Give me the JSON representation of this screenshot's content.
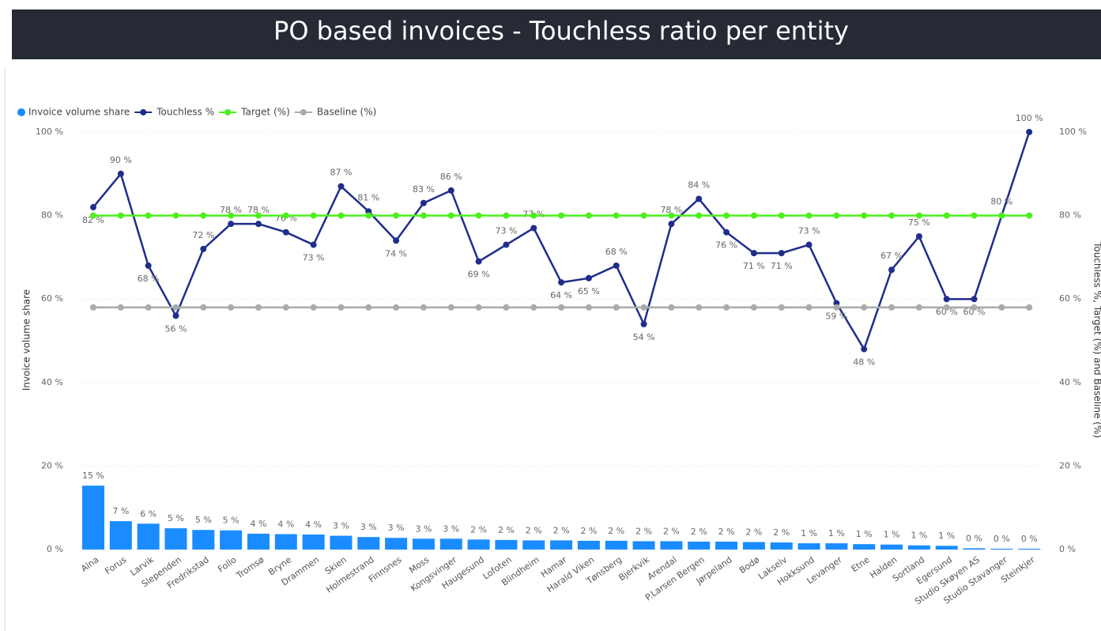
{
  "chart_data": {
    "type": "combo",
    "title": "PO based invoices - Touchless ratio per entity",
    "categories": [
      "Alna",
      "Forus",
      "Larvik",
      "Slependen",
      "Fredrikstad",
      "Follo",
      "Tromsø",
      "Bryne",
      "Drammen",
      "Skien",
      "Holmestrand",
      "Finnsnes",
      "Moss",
      "Kongsvinger",
      "Haugesund",
      "Lofoten",
      "Blindheim",
      "Hamar",
      "Harald Viken",
      "Tønsberg",
      "Bjerkvik",
      "Arendal",
      "P.Larsen Bergen",
      "Jørpeland",
      "Bodø",
      "Lakselv",
      "Hokksund",
      "Levanger",
      "Etne",
      "Halden",
      "Sortland",
      "Egersund",
      "Studio Skøyen AS",
      "Studio Stavanger",
      "Steinkjer"
    ],
    "series": [
      {
        "name": "Invoice volume share",
        "type": "bar",
        "color": "#1a8cff",
        "axis": "y",
        "values": [
          15.3,
          6.8,
          6.2,
          5.1,
          4.7,
          4.6,
          3.8,
          3.7,
          3.6,
          3.3,
          3.0,
          2.8,
          2.6,
          2.6,
          2.4,
          2.3,
          2.2,
          2.2,
          2.1,
          2.1,
          2.0,
          2.0,
          1.9,
          1.9,
          1.8,
          1.7,
          1.5,
          1.5,
          1.3,
          1.2,
          1.0,
          0.9,
          0.3,
          0.2,
          0.2
        ],
        "value_labels": [
          "15 %",
          "7 %",
          "6 %",
          "5 %",
          "5 %",
          "5 %",
          "4 %",
          "4 %",
          "4 %",
          "3 %",
          "3 %",
          "3 %",
          "3 %",
          "3 %",
          "2 %",
          "2 %",
          "2 %",
          "2 %",
          "2 %",
          "2 %",
          "2 %",
          "2 %",
          "2 %",
          "2 %",
          "2 %",
          "2 %",
          "1 %",
          "1 %",
          "1 %",
          "1 %",
          "1 %",
          "1 %",
          "0 %",
          "0 %",
          "0 %"
        ]
      },
      {
        "name": "Touchless %",
        "type": "line",
        "color": "#1f2d8c",
        "axis": "y2",
        "values": [
          82,
          90,
          68,
          56,
          72,
          78,
          78,
          76,
          73,
          87,
          81,
          74,
          83,
          86,
          69,
          73,
          77,
          64,
          65,
          68,
          54,
          78,
          84,
          76,
          71,
          71,
          73,
          59,
          48,
          67,
          75,
          60,
          60,
          80,
          100
        ],
        "value_labels": [
          "82 %",
          "90 %",
          "68 %",
          "56 %",
          "72 %",
          "78 %",
          "78 %",
          "76 %",
          "73 %",
          "87 %",
          "81 %",
          "74 %",
          "83 %",
          "86 %",
          "69 %",
          "73 %",
          "77 %",
          "64 %",
          "65 %",
          "68 %",
          "54 %",
          "78 %",
          "84 %",
          "76 %",
          "71 %",
          "71 %",
          "73 %",
          "59 %",
          "48 %",
          "67 %",
          "75 %",
          "60 %",
          "60 %",
          "80 %",
          "100 %"
        ]
      },
      {
        "name": "Target (%)",
        "type": "line",
        "color": "#4cef1c",
        "axis": "y2",
        "values": [
          80,
          80,
          80,
          80,
          80,
          80,
          80,
          80,
          80,
          80,
          80,
          80,
          80,
          80,
          80,
          80,
          80,
          80,
          80,
          80,
          80,
          80,
          80,
          80,
          80,
          80,
          80,
          80,
          80,
          80,
          80,
          80,
          80,
          80,
          80
        ]
      },
      {
        "name": "Baseline (%)",
        "type": "line",
        "color": "#aaaaaa",
        "axis": "y2",
        "values": [
          58,
          58,
          58,
          58,
          58,
          58,
          58,
          58,
          58,
          58,
          58,
          58,
          58,
          58,
          58,
          58,
          58,
          58,
          58,
          58,
          58,
          58,
          58,
          58,
          58,
          58,
          58,
          58,
          58,
          58,
          58,
          58,
          58,
          58,
          58
        ]
      }
    ],
    "y_label": "Invoice volume share",
    "y2_label": "Touchless %, Target (%) and Baseline (%)",
    "ylim": [
      0,
      100
    ],
    "yticks": [
      {
        "value": 0,
        "label": "0 %"
      },
      {
        "value": 20,
        "label": "20 %"
      },
      {
        "value": 40,
        "label": "40 %"
      },
      {
        "value": 60,
        "label": "60 %"
      },
      {
        "value": 80,
        "label": "80 %"
      },
      {
        "value": 100,
        "label": "100 %"
      }
    ],
    "y2lim": [
      0,
      100
    ],
    "y2ticks": [
      {
        "value": 0,
        "label": "0 %"
      },
      {
        "value": 20,
        "label": "20 %"
      },
      {
        "value": 40,
        "label": "40 %"
      },
      {
        "value": 60,
        "label": "60 %"
      },
      {
        "value": 80,
        "label": "80 %"
      },
      {
        "value": 100,
        "label": "100 %"
      }
    ],
    "grid": true,
    "legend": "top-left"
  }
}
